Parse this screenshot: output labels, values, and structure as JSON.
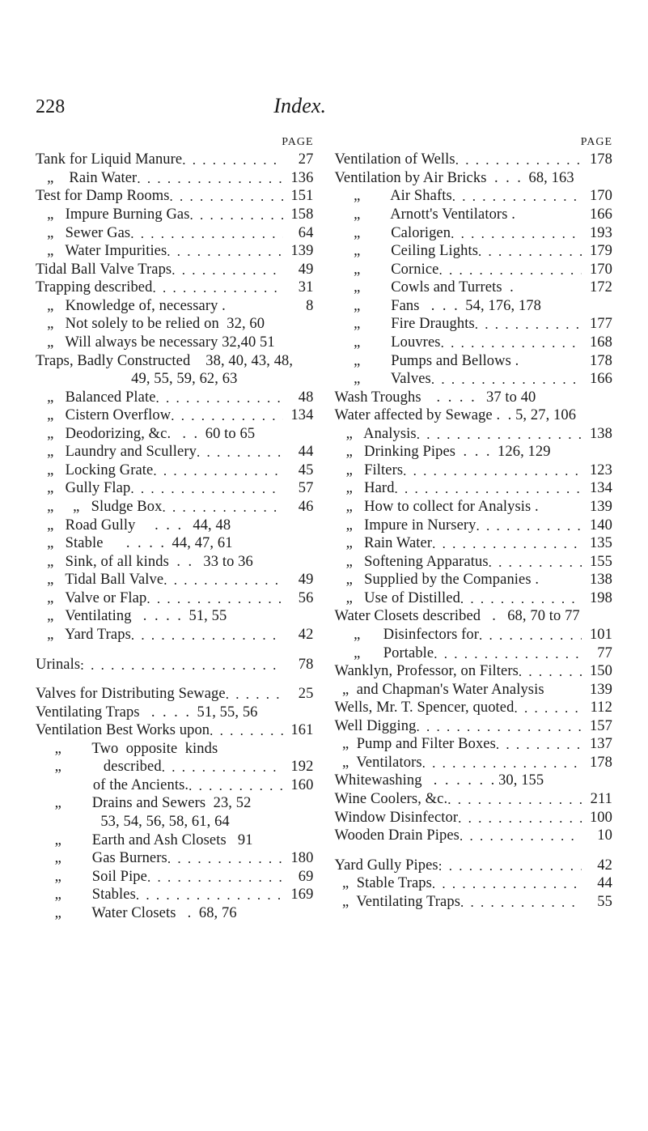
{
  "page_number": "228",
  "title": "Index.",
  "page_heading": "PAGE",
  "left": [
    {
      "label": "Tank for Liquid Manure",
      "page": "27"
    },
    {
      "label": "   „    Rain Water",
      "page": "136"
    },
    {
      "label": "Test for Damp Rooms",
      "page": "151"
    },
    {
      "label": "   „   Impure Burning Gas",
      "page": "158"
    },
    {
      "label": "   „   Sewer Gas",
      "page": "64"
    },
    {
      "label": "   „   Water Impurities",
      "page": "139"
    },
    {
      "label": "Tidal Ball Valve Traps",
      "page": "49"
    },
    {
      "label": "Trapping described",
      "page": "31"
    },
    {
      "label": "   „   Knowledge of, necessary .",
      "page": "8",
      "noleader": true
    },
    {
      "label": "   „   Not solely to be relied on  32, 60",
      "page": "",
      "noleader": true
    },
    {
      "label": "   „   Will always be necessary 32,40 51",
      "page": "",
      "noleader": true
    },
    {
      "label": "Traps, Badly Constructed    38, 40, 43, 48,",
      "page": "",
      "noleader": true
    },
    {
      "label": "                         49, 55, 59, 62, 63",
      "page": "",
      "noleader": true
    },
    {
      "label": "   „   Balanced Plate",
      "page": "48"
    },
    {
      "label": "   „   Cistern Overflow",
      "page": "134"
    },
    {
      "label": "   „   Deodorizing, &c.   .  .  60 to 65",
      "page": "",
      "noleader": true
    },
    {
      "label": "   „   Laundry and Scullery",
      "page": "44"
    },
    {
      "label": "   „   Locking Grate",
      "page": "45"
    },
    {
      "label": "   „   Gully Flap",
      "page": "57"
    },
    {
      "label": "   „     „   Sludge Box",
      "page": "46"
    },
    {
      "label": "   „   Road Gully     .  .  .   44, 48",
      "page": "",
      "noleader": true
    },
    {
      "label": "   „   Stable      .  .  .  .  44, 47, 61",
      "page": "",
      "noleader": true
    },
    {
      "label": "   „   Sink, of all kinds  .  .   33 to 36",
      "page": "",
      "noleader": true
    },
    {
      "label": "   „   Tidal Ball Valve",
      "page": "49"
    },
    {
      "label": "   „   Valve or Flap",
      "page": "56"
    },
    {
      "label": "   „   Ventilating   .  .  .  .  51, 55",
      "page": "",
      "noleader": true
    },
    {
      "label": "   „   Yard Traps",
      "page": "42"
    },
    {
      "spacer": true
    },
    {
      "label": "Urinals",
      "page": "78",
      "colon": true
    },
    {
      "spacer": true
    },
    {
      "label": "Valves for Distributing Sewage",
      "page": "25"
    },
    {
      "label": "Ventilating Traps   .  .  .  .  51, 55, 56",
      "page": "",
      "noleader": true
    },
    {
      "label": "Ventilation Best Works upon",
      "page": "161"
    },
    {
      "label": "     „        Two  opposite  kinds",
      "page": "",
      "noleader": true
    },
    {
      "label": "     „           described",
      "page": "192"
    },
    {
      "label": "               of the Ancients.",
      "page": "160"
    },
    {
      "label": "     „        Drains and Sewers  23, 52",
      "page": "",
      "noleader": true
    },
    {
      "label": "                 53, 54, 56, 58, 61, 64",
      "page": "",
      "noleader": true
    },
    {
      "label": "     „        Earth and Ash Closets   91",
      "page": "",
      "noleader": true
    },
    {
      "label": "     „        Gas Burners",
      "page": "180"
    },
    {
      "label": "     „        Soil Pipe",
      "page": "69"
    },
    {
      "label": "     „        Stables",
      "page": "169"
    },
    {
      "label": "     „        Water Closets   .  68, 76",
      "page": "",
      "noleader": true
    }
  ],
  "right": [
    {
      "label": "Ventilation of Wells",
      "page": "178"
    },
    {
      "label": "Ventilation by Air Bricks  .  .  .  68, 163",
      "page": "",
      "noleader": true
    },
    {
      "label": "     „        Air Shafts",
      "page": "170"
    },
    {
      "label": "     „        Arnott's Ventilators .",
      "page": "166",
      "noleader": true
    },
    {
      "label": "     „        Calorigen",
      "page": "193"
    },
    {
      "label": "     „        Ceiling Lights",
      "page": "179"
    },
    {
      "label": "     „        Cornice",
      "page": "170"
    },
    {
      "label": "     „        Cowls and Turrets  .",
      "page": "172",
      "noleader": true
    },
    {
      "label": "     „        Fans   .  .  .  54, 176, 178",
      "page": "",
      "noleader": true
    },
    {
      "label": "     „        Fire Draughts",
      "page": "177"
    },
    {
      "label": "     „        Louvres",
      "page": "168"
    },
    {
      "label": "     „        Pumps and Bellows .",
      "page": "178",
      "noleader": true
    },
    {
      "label": "     „        Valves",
      "page": "166"
    },
    {
      "label": "Wash Troughs    .  .  .  .   37 to 40",
      "page": "",
      "noleader": true
    },
    {
      "label": "Water affected by Sewage .  . 5, 27, 106",
      "page": "",
      "noleader": true
    },
    {
      "label": "   „   Analysis",
      "page": "138"
    },
    {
      "label": "   „   Drinking Pipes  .  .  .  126, 129",
      "page": "",
      "noleader": true
    },
    {
      "label": "   „   Filters",
      "page": "123"
    },
    {
      "label": "   „   Hard",
      "page": "134"
    },
    {
      "label": "   „   How to collect for Analysis .",
      "page": "139",
      "noleader": true
    },
    {
      "label": "   „   Impure in Nursery",
      "page": "140"
    },
    {
      "label": "   „   Rain Water",
      "page": "135"
    },
    {
      "label": "   „   Softening Apparatus",
      "page": "155"
    },
    {
      "label": "   „   Supplied by the Companies .",
      "page": "138",
      "noleader": true
    },
    {
      "label": "   „   Use of Distilled",
      "page": "198"
    },
    {
      "label": "Water Closets described   .   68, 70 to 77",
      "page": "",
      "noleader": true
    },
    {
      "label": "     „      Disinfectors for",
      "page": "101"
    },
    {
      "label": "     „      Portable",
      "page": "77"
    },
    {
      "label": "Wanklyn, Professor, on Filters",
      "page": "150"
    },
    {
      "label": "  „  and Chapman's Water Analysis",
      "page": "139",
      "noleader": true
    },
    {
      "label": "Wells, Mr. T. Spencer, quoted",
      "page": "112"
    },
    {
      "label": "Well Digging",
      "page": "157"
    },
    {
      "label": "  „  Pump and Filter Boxes",
      "page": "137"
    },
    {
      "label": "  „  Ventilators",
      "page": "178"
    },
    {
      "label": "Whitewashing   .  .  .  .  .  . 30, 155",
      "page": "",
      "noleader": true
    },
    {
      "label": "Wine Coolers, &c.",
      "page": "211"
    },
    {
      "label": "Window Disinfector",
      "page": "100"
    },
    {
      "label": "Wooden Drain Pipes",
      "page": "10"
    },
    {
      "spacer": true
    },
    {
      "label": "Yard Gully Pipes",
      "page": "42",
      "colon": true
    },
    {
      "label": "  „  Stable Traps",
      "page": "44"
    },
    {
      "label": "  „  Ventilating Traps",
      "page": "55"
    }
  ]
}
